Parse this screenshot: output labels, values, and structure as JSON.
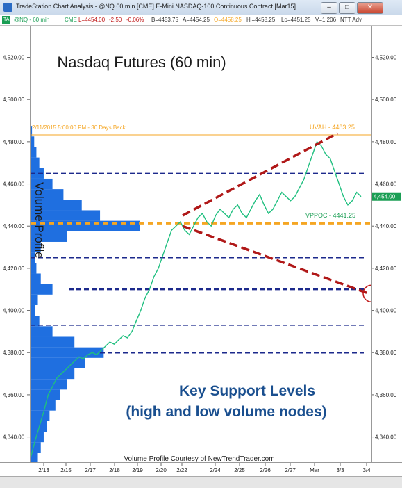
{
  "window": {
    "title": "TradeStation Chart Analysis - @NQ 60 min [CME] E-Mini NASDAQ-100 Continuous Contract [Mar15]",
    "minimize_glyph": "–",
    "maximize_glyph": "□",
    "close_glyph": "✕"
  },
  "infobar": {
    "badge": "TA",
    "symbol": "@NQ - 60 min",
    "exchange": "CME",
    "last": "L=4454.00",
    "change": "-2.50",
    "change_pct": "-0.06%",
    "bid": "B=4453.75",
    "ask": "A=4454.25",
    "open": "O=4458.25",
    "high": "Hi=4458.25",
    "low": "Lo=4451.25",
    "volume": "V=1,206",
    "extra": "NTT Adv"
  },
  "colors": {
    "price_line": "#1fbf7f",
    "profile_fill": "#1f6fe0",
    "poc_line": "#f5a623",
    "support_line": "#1c2a8c",
    "wedge_line": "#b01818",
    "circle": "#c01818",
    "current_price_box": "#1a9e54",
    "title_text": "#1b1b1b",
    "key_text": "#1a4f8f"
  },
  "annotations": {
    "title": "Nasdaq Futures (60 min)",
    "profile_header": "2/11/2015 5:00:00 PM - 30 Days Back",
    "uvah_label": "UVAH - 4483.25",
    "vppoc_label": "VPPOC - 4441.25",
    "profile_label": "Volume Profile",
    "key_line1": "Key Support Levels",
    "key_line2": "(high and low volume nodes)",
    "credit": "Volume Profile Courtesy of NewTrendTrader.com",
    "current_price": "4,454.00"
  },
  "chart_data": {
    "type": "line",
    "title": "Nasdaq Futures (60 min)",
    "xlabel": "",
    "ylabel": "",
    "ylim": [
      4328,
      4535
    ],
    "y_ticks": [
      "4,340.00",
      "4,360.00",
      "4,380.00",
      "4,400.00",
      "4,420.00",
      "4,440.00",
      "4,460.00",
      "4,480.00",
      "4,500.00",
      "4,520.00"
    ],
    "x_ticks": [
      "2/13",
      "2/15",
      "2/17",
      "2/18",
      "2/19",
      "2/20",
      "2/22",
      "2/24",
      "2/25",
      "2/26",
      "2/27",
      "Mar",
      "3/3",
      "3/4"
    ],
    "series": [
      {
        "values": [
          4330,
          4338,
          4345,
          4352,
          4360,
          4364,
          4368,
          4370,
          4372,
          4374,
          4376,
          4378,
          4377,
          4379,
          4380,
          4379,
          4381,
          4383,
          4385,
          4384,
          4386,
          4388,
          4387,
          4390,
          4395,
          4400,
          4406,
          4410,
          4416,
          4420,
          4426,
          4432,
          4438,
          4440,
          4442,
          4438,
          4436,
          4440,
          4444,
          4446,
          4442,
          4440,
          4445,
          4448,
          4446,
          4444,
          4448,
          4450,
          4446,
          4444,
          4448,
          4452,
          4455,
          4450,
          4446,
          4448,
          4452,
          4456,
          4454,
          4452,
          4454,
          4458,
          4462,
          4468,
          4474,
          4480,
          4478,
          4474,
          4472,
          4466,
          4460,
          4454,
          4450,
          4452,
          4456,
          4454
        ]
      }
    ],
    "volume_profile": {
      "levels": [
        4330,
        4335,
        4340,
        4345,
        4350,
        4355,
        4360,
        4365,
        4370,
        4375,
        4380,
        4385,
        4390,
        4395,
        4400,
        4405,
        4410,
        4415,
        4420,
        4425,
        4430,
        4435,
        4440,
        4445,
        4450,
        4455,
        4460,
        4465,
        4470,
        4475,
        4480,
        4485
      ],
      "volumes": [
        10,
        14,
        18,
        22,
        26,
        34,
        40,
        50,
        60,
        75,
        100,
        60,
        30,
        12,
        6,
        10,
        30,
        14,
        8,
        6,
        14,
        50,
        150,
        95,
        70,
        45,
        30,
        18,
        12,
        8,
        5,
        2
      ]
    },
    "levels": {
      "uvah": 4483.25,
      "vppoc": 4441.25,
      "support": [
        4465,
        4425,
        4410,
        4393,
        4380
      ]
    },
    "wedge": {
      "upper": [
        [
          "2/22",
          4445
        ],
        [
          "3/3",
          4483
        ]
      ],
      "lower": [
        [
          "2/22",
          4440
        ],
        [
          "3/4",
          4408
        ]
      ]
    },
    "grid": false,
    "legend": "none"
  }
}
